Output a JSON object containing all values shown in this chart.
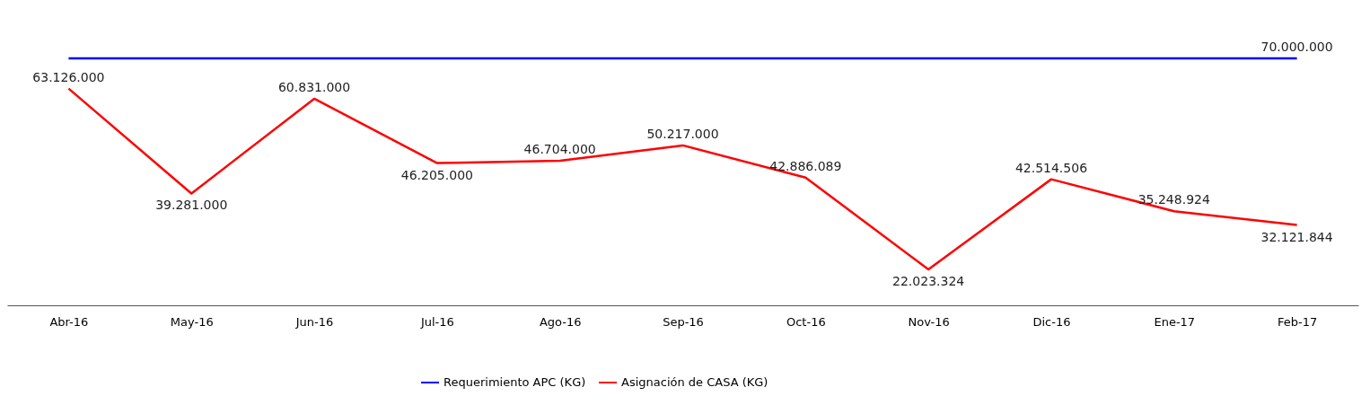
{
  "chart_data": {
    "type": "line",
    "categories": [
      "Abr-16",
      "May-16",
      "Jun-16",
      "Jul-16",
      "Ago-16",
      "Sep-16",
      "Oct-16",
      "Nov-16",
      "Dic-16",
      "Ene-17",
      "Feb-17"
    ],
    "series": [
      {
        "name": "Requerimiento APC (KG)",
        "color": "#0000ff",
        "values": [
          70000000,
          70000000,
          70000000,
          70000000,
          70000000,
          70000000,
          70000000,
          70000000,
          70000000,
          70000000,
          70000000
        ],
        "value_labels": [
          null,
          null,
          null,
          null,
          null,
          null,
          null,
          null,
          null,
          null,
          "70.000.000"
        ]
      },
      {
        "name": "Asignación de CASA (KG)",
        "color": "#ff0000",
        "values": [
          63126000,
          39281000,
          60831000,
          46205000,
          46704000,
          50217000,
          42886089,
          22023324,
          42514506,
          35248924,
          32121844
        ],
        "value_labels": [
          "63.126.000",
          "39.281.000",
          "60.831.000",
          "46.205.000",
          "46.704.000",
          "50.217.000",
          "42.886.089",
          "22.023.324",
          "42.514.506",
          "35.248.924",
          "32.121.844"
        ]
      }
    ],
    "legend": "bottom",
    "grid": false,
    "marker": "none",
    "line_style": "solid"
  }
}
